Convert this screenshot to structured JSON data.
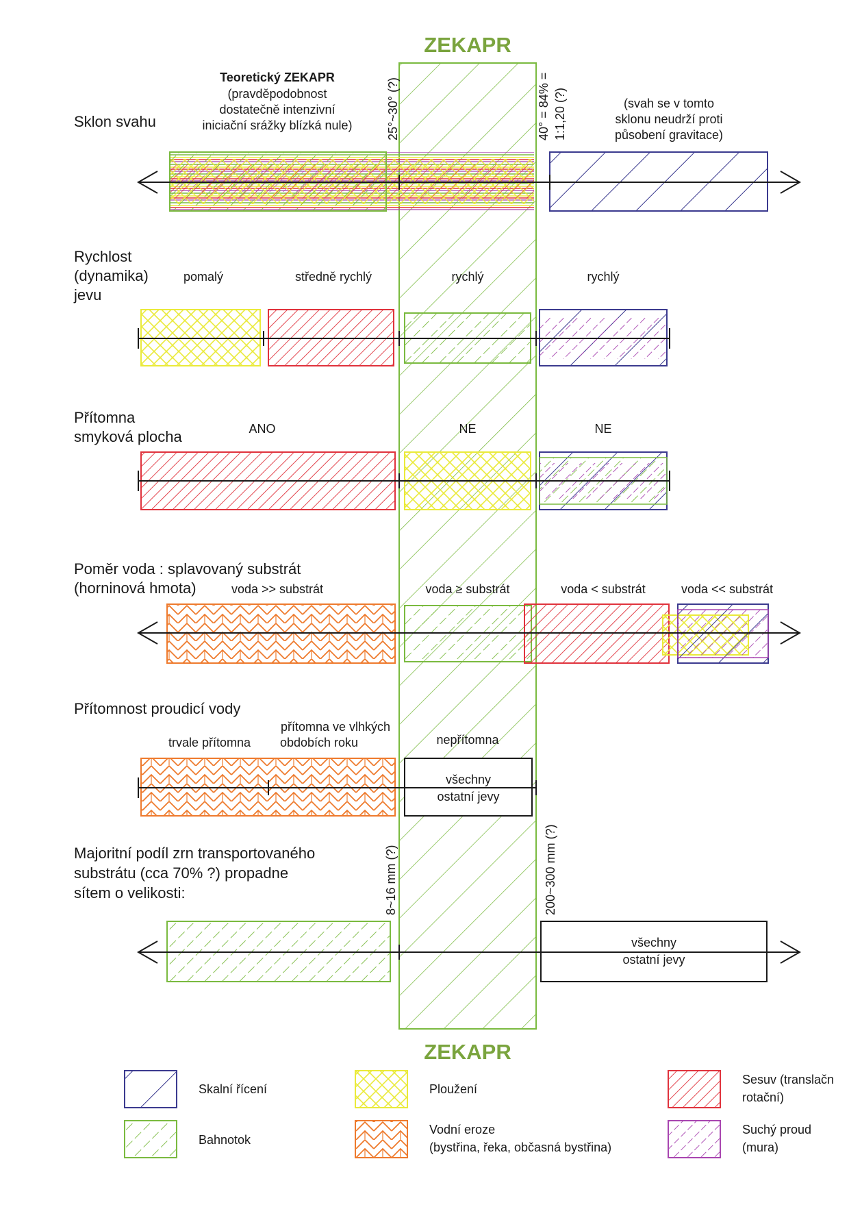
{
  "title_top": "ZEKAPR",
  "title_bottom": "ZEKAPR",
  "colors": {
    "skalni": "#3b3a8f",
    "bahnotok": "#7aba3f",
    "plouzeni": "#eaea3a",
    "vodni": "#ee7a2d",
    "sesuv": "#e0323c",
    "suchy": "#a845b0",
    "zekapr": "#7aba3f",
    "zekapr_title": "#7aa43e"
  },
  "row1": {
    "label": "Sklon svahu",
    "theory": [
      "Teoretický ZEKAPR",
      "(pravděpodobnost",
      "dostatečně intenzivní",
      "iniciační srážky blízká nule)"
    ],
    "mark_left": "25°~30° (?)",
    "mark_right": [
      "40° = 84% =",
      "1:1,20 (?)"
    ],
    "note": [
      "(svah se v tomto",
      "sklonu neudrží proti",
      "působení gravitace)"
    ]
  },
  "row2": {
    "label": [
      "Rychlost",
      "(dynamika)",
      "jevu"
    ],
    "seg": [
      "pomalý",
      "středně rychlý",
      "rychlý",
      "rychlý"
    ]
  },
  "row3": {
    "label": [
      "Přítomna",
      "smyková plocha"
    ],
    "seg": [
      "ANO",
      "NE",
      "NE"
    ]
  },
  "row4": {
    "label": [
      "Poměr voda : splavovaný substrát",
      "(horninová hmota)"
    ],
    "seg": [
      "voda >> substrát",
      "voda ≥ substrát",
      "voda < substrát",
      "voda << substrát"
    ]
  },
  "row5": {
    "label": "Přítomnost proudicí vody",
    "seg1": "trvale přítomna",
    "seg2": [
      "přítomna ve vlhkých",
      "obdobích roku"
    ],
    "seg3": "nepřítomna",
    "box": [
      "všechny",
      "ostatní jevy"
    ]
  },
  "row6": {
    "label": [
      "Majoritní podíl zrn transportovaného",
      "substrátu (cca 70% ?) propadne",
      "sítem o velikosti:"
    ],
    "mark_left": "8~16 mm (?)",
    "mark_right": "200~300 mm (?)",
    "box": [
      "všechny",
      "ostatní jevy"
    ]
  },
  "legend": [
    {
      "icon": "skalni-swatch",
      "lines": [
        "Skalní řícení"
      ]
    },
    {
      "icon": "plouzeni-swatch",
      "lines": [
        "Ploužení"
      ]
    },
    {
      "icon": "sesuv-swatch",
      "lines": [
        "Sesuv (translačn",
        "rotační)"
      ]
    },
    {
      "icon": "bahnotok-swatch",
      "lines": [
        "Bahnotok"
      ]
    },
    {
      "icon": "vodni-swatch",
      "lines": [
        "Vodní eroze",
        "(bystřina, řeka, občasná bystřina)"
      ]
    },
    {
      "icon": "suchy-swatch",
      "lines": [
        "Suchý proud",
        "(mura)"
      ]
    }
  ]
}
